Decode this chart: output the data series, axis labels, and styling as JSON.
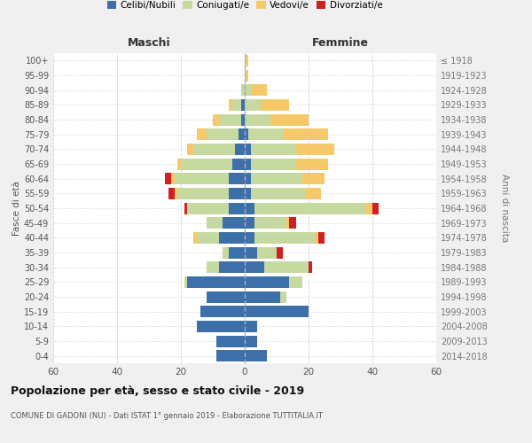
{
  "age_groups": [
    "0-4",
    "5-9",
    "10-14",
    "15-19",
    "20-24",
    "25-29",
    "30-34",
    "35-39",
    "40-44",
    "45-49",
    "50-54",
    "55-59",
    "60-64",
    "65-69",
    "70-74",
    "75-79",
    "80-84",
    "85-89",
    "90-94",
    "95-99",
    "100+"
  ],
  "birth_years": [
    "2014-2018",
    "2009-2013",
    "2004-2008",
    "1999-2003",
    "1994-1998",
    "1989-1993",
    "1984-1988",
    "1979-1983",
    "1974-1978",
    "1969-1973",
    "1964-1968",
    "1959-1963",
    "1954-1958",
    "1949-1953",
    "1944-1948",
    "1939-1943",
    "1934-1938",
    "1929-1933",
    "1924-1928",
    "1919-1923",
    "≤ 1918"
  ],
  "males": {
    "celibi": [
      9,
      9,
      15,
      14,
      12,
      18,
      8,
      5,
      8,
      7,
      5,
      5,
      5,
      4,
      3,
      2,
      1,
      1,
      0,
      0,
      0
    ],
    "coniugati": [
      0,
      0,
      0,
      0,
      0,
      1,
      4,
      2,
      7,
      5,
      13,
      16,
      17,
      16,
      13,
      10,
      7,
      3,
      1,
      0,
      0
    ],
    "vedovi": [
      0,
      0,
      0,
      0,
      0,
      0,
      0,
      0,
      1,
      0,
      0,
      1,
      1,
      1,
      2,
      3,
      2,
      1,
      0,
      0,
      0
    ],
    "divorziati": [
      0,
      0,
      0,
      0,
      0,
      0,
      0,
      0,
      0,
      0,
      1,
      2,
      2,
      0,
      0,
      0,
      0,
      0,
      0,
      0,
      0
    ]
  },
  "females": {
    "nubili": [
      7,
      4,
      4,
      20,
      11,
      14,
      6,
      4,
      3,
      3,
      3,
      2,
      2,
      2,
      2,
      1,
      0,
      0,
      0,
      0,
      0
    ],
    "coniugate": [
      0,
      0,
      0,
      0,
      2,
      4,
      14,
      6,
      19,
      10,
      35,
      17,
      16,
      14,
      14,
      11,
      8,
      5,
      2,
      0,
      0
    ],
    "vedove": [
      0,
      0,
      0,
      0,
      0,
      0,
      0,
      0,
      1,
      1,
      2,
      5,
      7,
      10,
      12,
      14,
      12,
      9,
      5,
      1,
      1
    ],
    "divorziate": [
      0,
      0,
      0,
      0,
      0,
      0,
      1,
      2,
      2,
      2,
      2,
      0,
      0,
      0,
      0,
      0,
      0,
      0,
      0,
      0,
      0
    ]
  },
  "colors": {
    "celibi": "#3d6fa8",
    "coniugati": "#c5d9a0",
    "vedovi": "#f5c96a",
    "divorziati": "#d02020"
  },
  "xlim": 60,
  "title": "Popolazione per età, sesso e stato civile - 2019",
  "subtitle": "COMUNE DI GADONI (NU) - Dati ISTAT 1° gennaio 2019 - Elaborazione TUTTITALIA.IT",
  "ylabel_left": "Fasce di età",
  "ylabel_right": "Anni di nascita",
  "xlabel_maschi": "Maschi",
  "xlabel_femmine": "Femmine",
  "legend_labels": [
    "Celibi/Nubili",
    "Coniugati/e",
    "Vedovi/e",
    "Divorziati/e"
  ],
  "bg_color": "#f0f0f0",
  "plot_bg": "#ffffff"
}
